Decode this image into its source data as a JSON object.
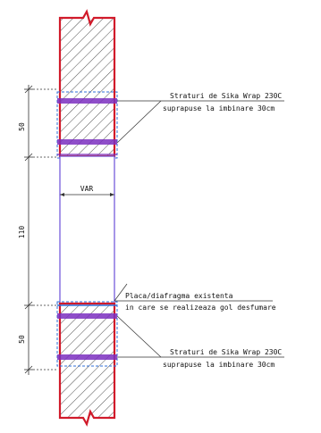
{
  "drawing": {
    "dimensions": {
      "top": "50",
      "middle": "110",
      "bottom": "50"
    },
    "labels": {
      "wrap_top_line1": "Straturi de Sika Wrap 230C",
      "wrap_top_line2": "suprapuse la imbinare 30cm",
      "opening_width": "VAR",
      "slab_line1": "Placa/diafragma existenta",
      "slab_line2": "in care se realizeaza gol desfumare",
      "wrap_bottom_line1": "Straturi de Sika Wrap 230C",
      "wrap_bottom_line2": "suprapuse la imbinare 30cm"
    },
    "colors": {
      "wall_outline": "#d11a2a",
      "wrap": "#7b2fbf",
      "opening": "#6a4fd8",
      "slab": "#2f6fd8",
      "hatch": "#222222",
      "dimension": "#333333"
    }
  }
}
